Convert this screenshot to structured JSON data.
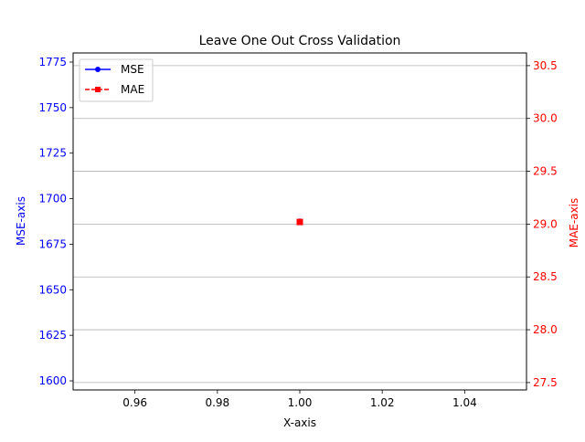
{
  "chart_data": {
    "type": "line",
    "title": "Leave One Out Cross Validation",
    "xlabel": "X-axis",
    "ylabel_left": "MSE-axis",
    "ylabel_right": "MAE-axis",
    "x": [
      1.0
    ],
    "xlim": [
      0.945,
      1.055
    ],
    "x_ticks": [
      0.96,
      0.98,
      1.0,
      1.02,
      1.04
    ],
    "x_tick_labels": [
      "0.96",
      "0.98",
      "1.00",
      "1.02",
      "1.04"
    ],
    "ylim_left": [
      1595,
      1780
    ],
    "y_ticks_left": [
      1600,
      1625,
      1650,
      1675,
      1700,
      1725,
      1750,
      1775
    ],
    "y_tick_labels_left": [
      "1600",
      "1625",
      "1650",
      "1675",
      "1700",
      "1725",
      "1750",
      "1775"
    ],
    "ylim_right": [
      27.43,
      30.62
    ],
    "y_ticks_right": [
      27.5,
      28.0,
      28.5,
      29.0,
      29.5,
      30.0,
      30.5
    ],
    "y_tick_labels_right": [
      "27.5",
      "28.0",
      "28.5",
      "29.0",
      "29.5",
      "30.0",
      "30.5"
    ],
    "grid": "horizontal on right axis",
    "legend_position": "top-left",
    "series": [
      {
        "name": "MSE",
        "axis": "left",
        "values": [
          1687.5
        ],
        "color": "#0000ff",
        "linestyle": "solid",
        "marker": "circle"
      },
      {
        "name": "MAE",
        "axis": "right",
        "values": [
          29.02
        ],
        "color": "#ff0000",
        "linestyle": "dashed",
        "marker": "square"
      }
    ],
    "left_axis_color": "#0000ff",
    "right_axis_color": "#ff0000"
  }
}
